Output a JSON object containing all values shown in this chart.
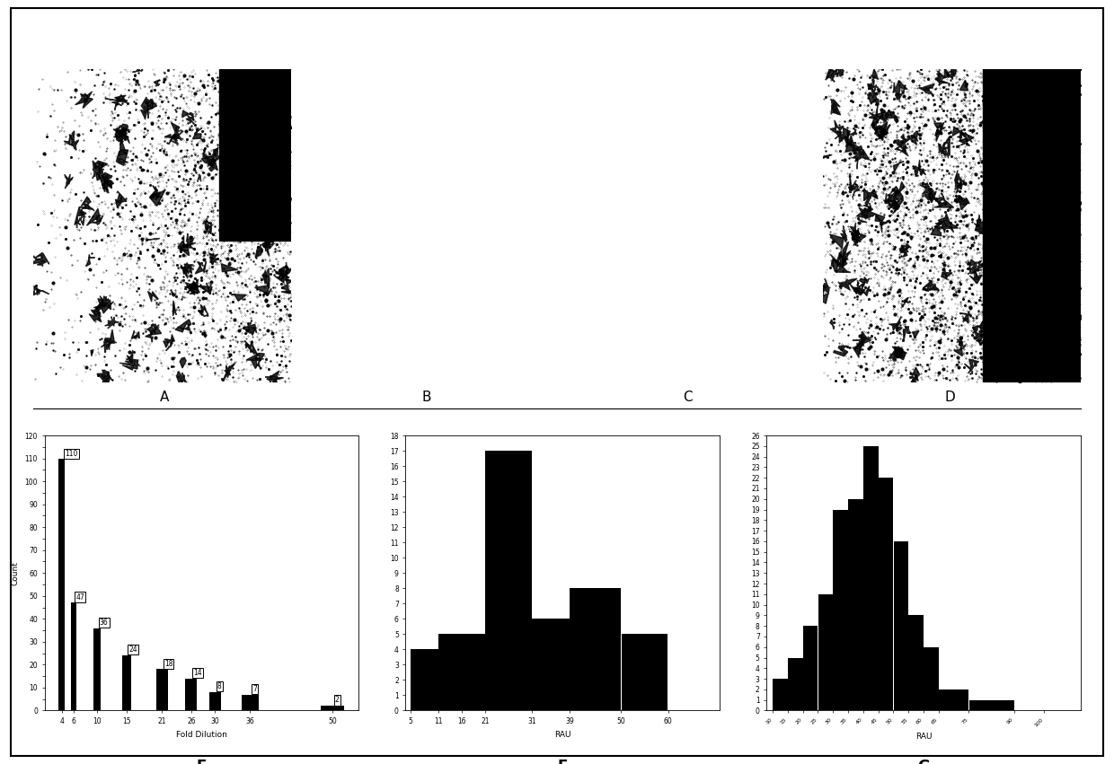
{
  "panel_E": {
    "xlabel": "Fold Dilution",
    "ylabel": "Count",
    "x_positions": [
      4,
      6,
      10,
      15,
      21,
      26,
      30,
      36,
      50
    ],
    "bar_heights": [
      110,
      47,
      36,
      24,
      18,
      14,
      8,
      7,
      2
    ],
    "bar_labels": [
      "110",
      "47",
      "36",
      "24",
      "18",
      "14",
      "8",
      "7",
      "2"
    ],
    "bar_widths": [
      1.0,
      1.0,
      1.2,
      1.5,
      2.0,
      2.0,
      2.0,
      3.0,
      4.0
    ],
    "ylim": [
      0,
      120
    ],
    "ytick_step": 5,
    "ytick_label_step": 10,
    "color": "#000000"
  },
  "panel_F": {
    "xlabel": "RAU",
    "ylabel": "",
    "bin_edges": [
      5,
      11,
      16,
      21,
      31,
      39,
      50,
      60,
      70
    ],
    "heights": [
      4,
      5,
      5,
      17,
      6,
      8,
      5,
      0
    ],
    "ylim": [
      0,
      18
    ],
    "color": "#000000"
  },
  "panel_G": {
    "xlabel": "RAU",
    "ylabel": "",
    "bin_edges": [
      10,
      15,
      20,
      25,
      30,
      35,
      40,
      45,
      50,
      55,
      60,
      65,
      75,
      90,
      100,
      110
    ],
    "heights": [
      3,
      5,
      8,
      11,
      19,
      20,
      25,
      22,
      16,
      9,
      6,
      2,
      1,
      0,
      0
    ],
    "ylim": [
      0,
      26
    ],
    "color": "#000000"
  }
}
